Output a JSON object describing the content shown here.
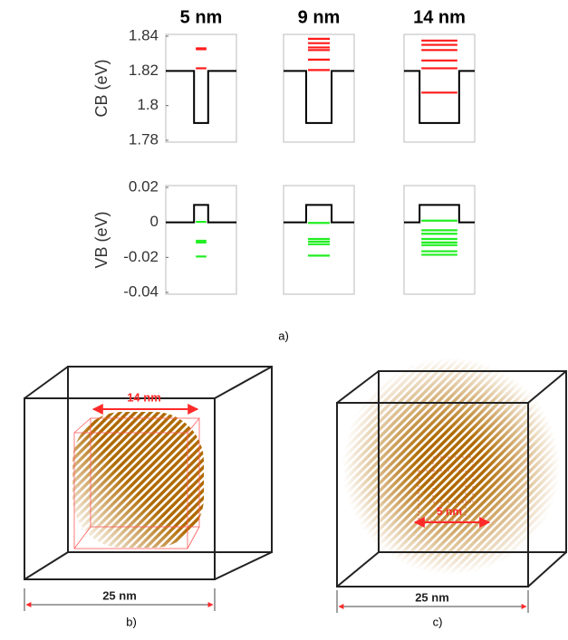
{
  "chart_data": [
    {
      "type": "well",
      "title": "5 nm",
      "ylabel": "CB (eV)",
      "ylim": [
        1.78,
        1.84
      ],
      "yticks": [
        1.78,
        1.8,
        1.82,
        1.84
      ],
      "xlim": [
        -12.5,
        12.5
      ],
      "x": [
        -12.5,
        -2.5,
        -2.5,
        2.5,
        2.5,
        12.5
      ],
      "values": [
        1.82,
        1.82,
        1.79,
        1.79,
        1.82,
        1.82
      ],
      "levels": [
        1.833,
        1.8325,
        1.8215
      ],
      "color": "#ff1a1a"
    },
    {
      "type": "well",
      "title": "9 nm",
      "ylim": [
        1.78,
        1.84
      ],
      "xlim": [
        -12.5,
        12.5
      ],
      "x": [
        -12.5,
        -4.5,
        -4.5,
        4.5,
        4.5,
        12.5
      ],
      "values": [
        1.82,
        1.82,
        1.79,
        1.79,
        1.82,
        1.82
      ],
      "levels": [
        1.8385,
        1.836,
        1.8335,
        1.832,
        1.8265,
        1.8205
      ],
      "color": "#ff1a1a"
    },
    {
      "type": "well",
      "title": "14 nm",
      "ylim": [
        1.78,
        1.84
      ],
      "xlim": [
        -12.5,
        12.5
      ],
      "x": [
        -12.5,
        -7,
        -7,
        7,
        7,
        12.5
      ],
      "values": [
        1.82,
        1.82,
        1.79,
        1.79,
        1.82,
        1.82
      ],
      "levels": [
        1.8375,
        1.835,
        1.832,
        1.826,
        1.8215,
        1.8075
      ],
      "color": "#ff1a1a"
    },
    {
      "type": "well",
      "ylabel": "VB (eV)",
      "ylim": [
        -0.04,
        0.02
      ],
      "yticks": [
        -0.04,
        -0.02,
        0,
        0.02
      ],
      "xlim": [
        -12.5,
        12.5
      ],
      "x": [
        -12.5,
        -2.5,
        -2.5,
        2.5,
        2.5,
        12.5
      ],
      "values": [
        0,
        0,
        0.01,
        0.01,
        0,
        0
      ],
      "levels": [
        0.0003,
        -0.0105,
        -0.0115,
        -0.0195
      ],
      "color": "#22ee22"
    },
    {
      "type": "well",
      "ylim": [
        -0.04,
        0.02
      ],
      "xlim": [
        -12.5,
        12.5
      ],
      "x": [
        -12.5,
        -4.5,
        -4.5,
        4.5,
        4.5,
        12.5
      ],
      "values": [
        0,
        0,
        0.01,
        0.01,
        0,
        0
      ],
      "levels": [
        -0.0003,
        -0.0095,
        -0.011,
        -0.0125,
        -0.019
      ],
      "color": "#22ee22"
    },
    {
      "type": "well",
      "ylim": [
        -0.04,
        0.02
      ],
      "xlim": [
        -12.5,
        12.5
      ],
      "x": [
        -12.5,
        -7,
        -7,
        7,
        7,
        12.5
      ],
      "values": [
        0,
        0,
        0.01,
        0.01,
        0,
        0
      ],
      "levels": [
        0.001,
        -0.0045,
        -0.0065,
        -0.0095,
        -0.0115,
        -0.013,
        -0.0165,
        -0.0185
      ],
      "color": "#22ee22"
    }
  ],
  "captions": [
    "a)",
    "b)",
    "c)"
  ],
  "renders": [
    {
      "inner_label": "14 nm",
      "box_label": "25 nm"
    },
    {
      "inner_label": "5 nm",
      "box_label": "25 nm"
    }
  ]
}
